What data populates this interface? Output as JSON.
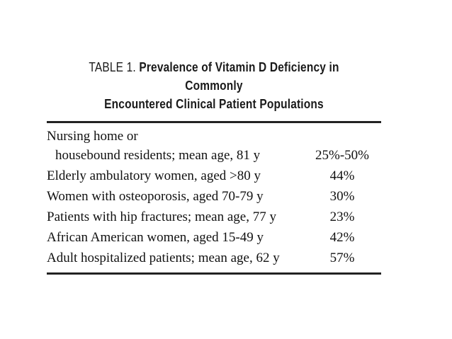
{
  "table": {
    "caption_lead": "TABLE 1.",
    "caption_bold_line1": "Prevalence of Vitamin D Deficiency in Commonly",
    "caption_bold_line2": "Encountered Clinical Patient Populations",
    "rows": [
      {
        "label_line1": "Nursing home or",
        "label_line2": "housebound residents; mean age, 81 y",
        "value": "25%-50%"
      },
      {
        "label": "Elderly ambulatory women, aged >80 y",
        "value": "44%"
      },
      {
        "label": "Women with osteoporosis, aged 70-79 y",
        "value": "30%"
      },
      {
        "label": "Patients with hip fractures; mean age, 77 y",
        "value": "23%"
      },
      {
        "label": "African American women, aged 15-49 y",
        "value": "42%"
      },
      {
        "label": "Adult hospitalized patients; mean age, 62 y",
        "value": "57%"
      }
    ]
  }
}
